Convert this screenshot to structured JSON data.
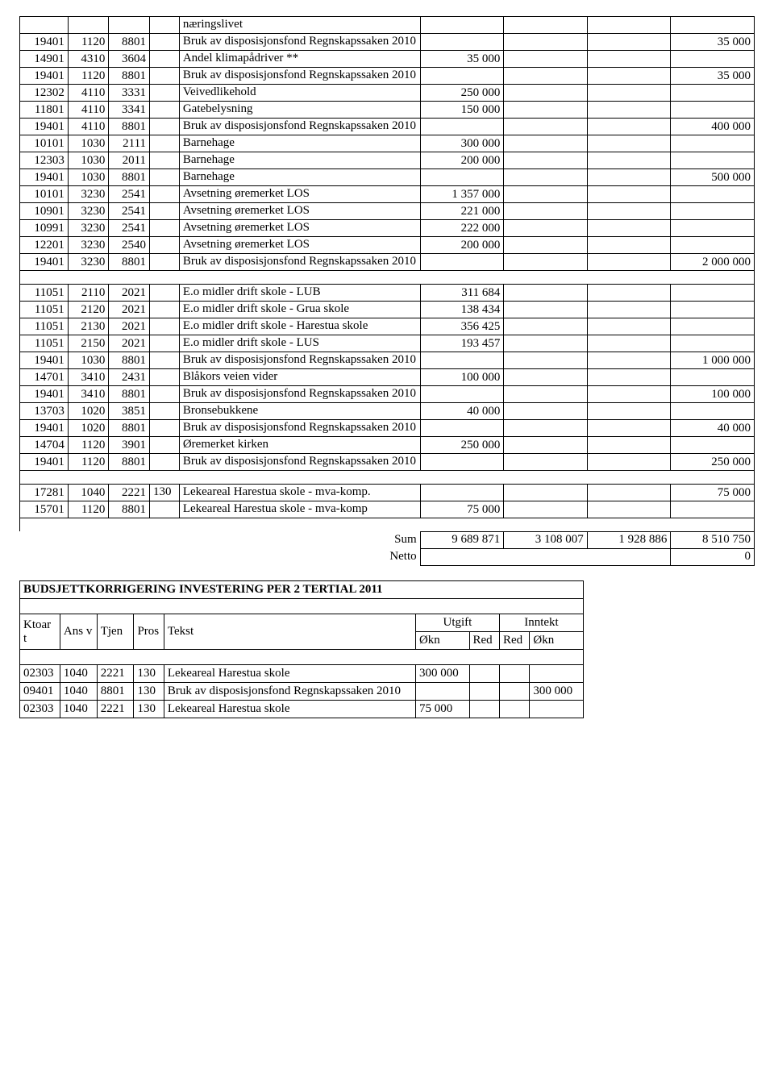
{
  "main_table": {
    "rows": [
      {
        "c1": "",
        "c2": "",
        "c3": "",
        "c4": "",
        "c5": "næringslivet",
        "c6": "",
        "c7": "",
        "c8": "",
        "c9": ""
      },
      {
        "c1": "19401",
        "c2": "1120",
        "c3": "8801",
        "c4": "",
        "c5": "Bruk av disposisjonsfond Regnskapssaken 2010",
        "c6": "",
        "c7": "",
        "c8": "",
        "c9": "35 000",
        "multiline": true
      },
      {
        "c1": "14901",
        "c2": "4310",
        "c3": "3604",
        "c4": "",
        "c5": "Andel klimapådriver **",
        "c6": "35 000",
        "c7": "",
        "c8": "",
        "c9": ""
      },
      {
        "c1": "19401",
        "c2": "1120",
        "c3": "8801",
        "c4": "",
        "c5": "Bruk av disposisjonsfond Regnskapssaken 2010",
        "c6": "",
        "c7": "",
        "c8": "",
        "c9": "35 000",
        "multiline": true
      },
      {
        "c1": "12302",
        "c2": "4110",
        "c3": "3331",
        "c4": "",
        "c5": "Veivedlikehold",
        "c6": "250 000",
        "c7": "",
        "c8": "",
        "c9": ""
      },
      {
        "c1": "11801",
        "c2": "4110",
        "c3": "3341",
        "c4": "",
        "c5": "Gatebelysning",
        "c6": "150 000",
        "c7": "",
        "c8": "",
        "c9": ""
      },
      {
        "c1": "19401",
        "c2": "4110",
        "c3": "8801",
        "c4": "",
        "c5": "Bruk av disposisjonsfond Regnskapssaken 2010",
        "c6": "",
        "c7": "",
        "c8": "",
        "c9": "400 000",
        "multiline": true
      },
      {
        "c1": "10101",
        "c2": "1030",
        "c3": "2111",
        "c4": "",
        "c5": "Barnehage",
        "c6": "300 000",
        "c7": "",
        "c8": "",
        "c9": ""
      },
      {
        "c1": "12303",
        "c2": "1030",
        "c3": "2011",
        "c4": "",
        "c5": "Barnehage",
        "c6": "200 000",
        "c7": "",
        "c8": "",
        "c9": ""
      },
      {
        "c1": "19401",
        "c2": "1030",
        "c3": "8801",
        "c4": "",
        "c5": "Barnehage",
        "c6": "",
        "c7": "",
        "c8": "",
        "c9": "500 000"
      },
      {
        "c1": "10101",
        "c2": "3230",
        "c3": "2541",
        "c4": "",
        "c5": "Avsetning øremerket LOS",
        "c6": "1 357 000",
        "c7": "",
        "c8": "",
        "c9": ""
      },
      {
        "c1": "10901",
        "c2": "3230",
        "c3": "2541",
        "c4": "",
        "c5": "Avsetning øremerket LOS",
        "c6": "221 000",
        "c7": "",
        "c8": "",
        "c9": ""
      },
      {
        "c1": "10991",
        "c2": "3230",
        "c3": "2541",
        "c4": "",
        "c5": "Avsetning øremerket LOS",
        "c6": "222 000",
        "c7": "",
        "c8": "",
        "c9": ""
      },
      {
        "c1": "12201",
        "c2": "3230",
        "c3": "2540",
        "c4": "",
        "c5": "Avsetning øremerket LOS",
        "c6": "200 000",
        "c7": "",
        "c8": "",
        "c9": ""
      },
      {
        "c1": "19401",
        "c2": "3230",
        "c3": "8801",
        "c4": "",
        "c5": "Bruk av disposisjonsfond Regnskapssaken 2010",
        "c6": "",
        "c7": "",
        "c8": "",
        "c9": "2 000 000",
        "multiline": true
      },
      {
        "blank": true
      },
      {
        "c1": "11051",
        "c2": "2110",
        "c3": "2021",
        "c4": "",
        "c5": "E.o midler drift skole - LUB",
        "c6": "311 684",
        "c7": "",
        "c8": "",
        "c9": ""
      },
      {
        "c1": "11051",
        "c2": "2120",
        "c3": "2021",
        "c4": "",
        "c5": "E.o midler drift skole - Grua skole",
        "c6": "138 434",
        "c7": "",
        "c8": "",
        "c9": "",
        "multiline": true
      },
      {
        "c1": "11051",
        "c2": "2130",
        "c3": "2021",
        "c4": "",
        "c5": "E.o midler drift skole - Harestua skole",
        "c6": "356 425",
        "c7": "",
        "c8": "",
        "c9": "",
        "multiline": true
      },
      {
        "c1": "11051",
        "c2": "2150",
        "c3": "2021",
        "c4": "",
        "c5": "E.o midler drift skole - LUS",
        "c6": "193 457",
        "c7": "",
        "c8": "",
        "c9": ""
      },
      {
        "c1": "19401",
        "c2": "1030",
        "c3": "8801",
        "c4": "",
        "c5": "Bruk av disposisjonsfond Regnskapssaken 2010",
        "c6": "",
        "c7": "",
        "c8": "",
        "c9": "1 000 000",
        "multiline": true
      },
      {
        "c1": "14701",
        "c2": "3410",
        "c3": "2431",
        "c4": "",
        "c5": "Blåkors veien vider",
        "c6": "100 000",
        "c7": "",
        "c8": "",
        "c9": ""
      },
      {
        "c1": "19401",
        "c2": "3410",
        "c3": "8801",
        "c4": "",
        "c5": "Bruk av disposisjonsfond Regnskapssaken 2010",
        "c6": "",
        "c7": "",
        "c8": "",
        "c9": "100 000",
        "multiline": true
      },
      {
        "c1": "13703",
        "c2": "1020",
        "c3": "3851",
        "c4": "",
        "c5": "Bronsebukkene",
        "c6": "40 000",
        "c7": "",
        "c8": "",
        "c9": ""
      },
      {
        "c1": "19401",
        "c2": "1020",
        "c3": "8801",
        "c4": "",
        "c5": "Bruk av disposisjonsfond Regnskapssaken 2010",
        "c6": "",
        "c7": "",
        "c8": "",
        "c9": "40 000",
        "multiline": true
      },
      {
        "c1": "14704",
        "c2": "1120",
        "c3": "3901",
        "c4": "",
        "c5": "Øremerket kirken",
        "c6": "250 000",
        "c7": "",
        "c8": "",
        "c9": ""
      },
      {
        "c1": "19401",
        "c2": "1120",
        "c3": "8801",
        "c4": "",
        "c5": "Bruk av disposisjonsfond Regnskapssaken 2010",
        "c6": "",
        "c7": "",
        "c8": "",
        "c9": "250 000",
        "multiline": true
      },
      {
        "blank": true
      },
      {
        "c1": "17281",
        "c2": "1040",
        "c3": "2221",
        "c4": "130",
        "c5": "Lekeareal Harestua skole - mva-komp.",
        "c6": "",
        "c7": "",
        "c8": "",
        "c9": "75 000",
        "multiline": true
      },
      {
        "c1": "15701",
        "c2": "1120",
        "c3": "8801",
        "c4": "",
        "c5": "Lekeareal Harestua skole - mva-komp",
        "c6": "75 000",
        "c7": "",
        "c8": "",
        "c9": "",
        "multiline": true
      },
      {
        "blank": true
      }
    ],
    "sum_label": "Sum",
    "sum": {
      "c6": "9 689 871",
      "c7": "3 108 007",
      "c8": "1 928 886",
      "c9": "8 510 750"
    },
    "netto_label": "Netto",
    "netto": "0"
  },
  "second_table": {
    "title": "BUDSJETTKORRIGERING INVESTERING  PER 2 TERTIAL 2011",
    "header_top": {
      "utgift": "Utgift",
      "inntekt": "Inntekt"
    },
    "header": {
      "c1": "Ktoar t",
      "c2": "Ans v",
      "c3": "Tjen",
      "c4": "Pros",
      "c5": "Tekst",
      "c6": "Økn",
      "c7": "Red",
      "c8": "Red",
      "c9": "Økn"
    },
    "rows": [
      {
        "c1": "02303",
        "c2": "1040",
        "c3": "2221",
        "c4": "130",
        "c5": "Lekeareal Harestua skole",
        "c6": "300 000",
        "c7": "",
        "c8": "",
        "c9": ""
      },
      {
        "c1": "09401",
        "c2": "1040",
        "c3": "8801",
        "c4": "130",
        "c5": "Bruk av disposisjonsfond Regnskapssaken 2010",
        "c6": "",
        "c7": "",
        "c8": "",
        "c9": "300 000"
      },
      {
        "c1": "02303",
        "c2": "1040",
        "c3": "2221",
        "c4": "130",
        "c5": "Lekeareal Harestua skole",
        "c6": "75 000",
        "c7": "",
        "c8": "",
        "c9": ""
      }
    ]
  }
}
